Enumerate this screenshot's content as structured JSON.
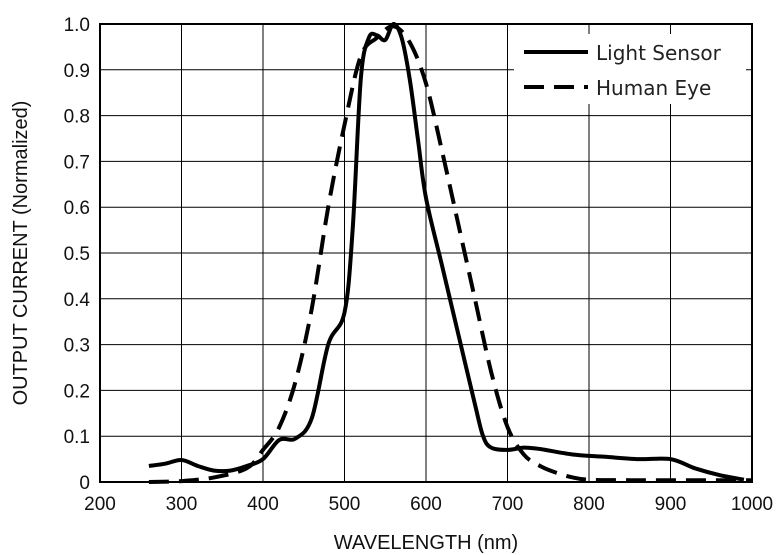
{
  "chart_data": {
    "type": "line",
    "xlabel": "WAVELENGTH (nm)",
    "ylabel": "OUTPUT CURRENT (Normalized)",
    "xlim": [
      200,
      1000
    ],
    "ylim": [
      0,
      1.0
    ],
    "x_ticks": [
      "200",
      "300",
      "400",
      "500",
      "600",
      "700",
      "800",
      "900",
      "1000"
    ],
    "y_ticks": [
      "0",
      "0.1",
      "0.2",
      "0.3",
      "0.4",
      "0.5",
      "0.6",
      "0.7",
      "0.8",
      "0.9",
      "1.0"
    ],
    "grid": true,
    "legend_position": "top-right",
    "series": [
      {
        "name": "Light Sensor",
        "style": "solid",
        "color": "#000000",
        "points": [
          [
            260,
            0.035
          ],
          [
            280,
            0.04
          ],
          [
            300,
            0.048
          ],
          [
            320,
            0.035
          ],
          [
            340,
            0.025
          ],
          [
            360,
            0.025
          ],
          [
            380,
            0.035
          ],
          [
            400,
            0.05
          ],
          [
            420,
            0.092
          ],
          [
            440,
            0.095
          ],
          [
            460,
            0.14
          ],
          [
            480,
            0.3
          ],
          [
            500,
            0.37
          ],
          [
            510,
            0.55
          ],
          [
            520,
            0.88
          ],
          [
            530,
            0.97
          ],
          [
            540,
            0.975
          ],
          [
            550,
            0.965
          ],
          [
            560,
            1.0
          ],
          [
            570,
            0.97
          ],
          [
            580,
            0.88
          ],
          [
            590,
            0.75
          ],
          [
            600,
            0.62
          ],
          [
            620,
            0.47
          ],
          [
            640,
            0.32
          ],
          [
            660,
            0.17
          ],
          [
            670,
            0.1
          ],
          [
            680,
            0.075
          ],
          [
            700,
            0.07
          ],
          [
            720,
            0.075
          ],
          [
            740,
            0.072
          ],
          [
            780,
            0.06
          ],
          [
            820,
            0.055
          ],
          [
            860,
            0.05
          ],
          [
            900,
            0.05
          ],
          [
            930,
            0.03
          ],
          [
            960,
            0.015
          ],
          [
            990,
            0.005
          ]
        ]
      },
      {
        "name": "Human Eye",
        "style": "dashed",
        "color": "#000000",
        "points": [
          [
            260,
            0.0
          ],
          [
            300,
            0.002
          ],
          [
            340,
            0.01
          ],
          [
            380,
            0.03
          ],
          [
            400,
            0.07
          ],
          [
            420,
            0.12
          ],
          [
            440,
            0.22
          ],
          [
            460,
            0.38
          ],
          [
            480,
            0.6
          ],
          [
            500,
            0.78
          ],
          [
            520,
            0.93
          ],
          [
            540,
            0.97
          ],
          [
            560,
            0.995
          ],
          [
            580,
            0.96
          ],
          [
            600,
            0.87
          ],
          [
            620,
            0.72
          ],
          [
            640,
            0.56
          ],
          [
            660,
            0.4
          ],
          [
            680,
            0.24
          ],
          [
            700,
            0.12
          ],
          [
            720,
            0.06
          ],
          [
            740,
            0.035
          ],
          [
            760,
            0.02
          ],
          [
            780,
            0.01
          ],
          [
            800,
            0.005
          ],
          [
            850,
            0.004
          ],
          [
            900,
            0.004
          ],
          [
            950,
            0.004
          ],
          [
            1000,
            0.004
          ]
        ]
      }
    ]
  }
}
